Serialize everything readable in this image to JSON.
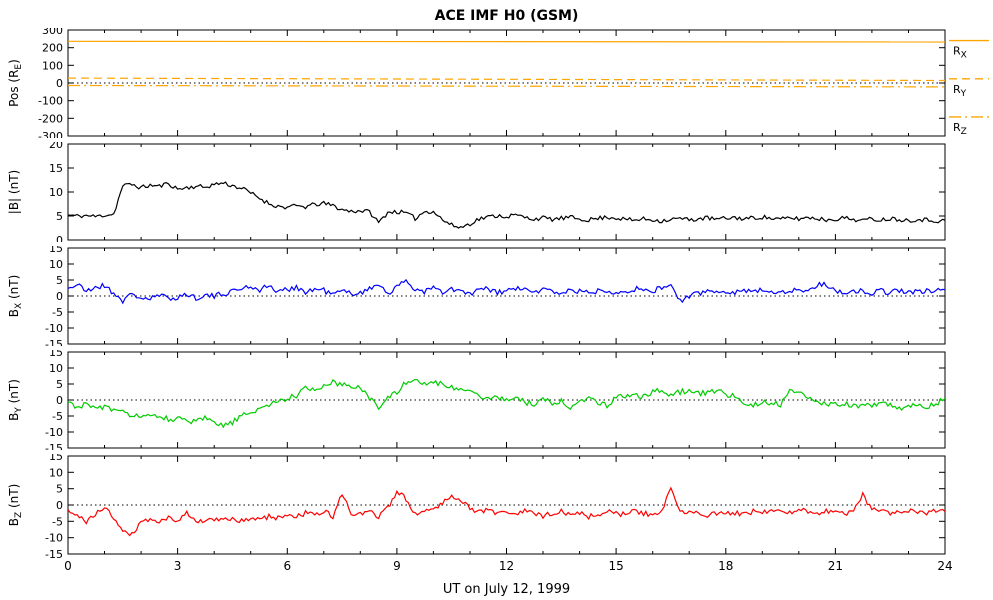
{
  "chart_data": {
    "type": "line",
    "title": "ACE IMF H0 (GSM)",
    "xlabel": "UT on July 12, 1999",
    "xlim": [
      0,
      24
    ],
    "xticks": [
      0,
      3,
      6,
      9,
      12,
      15,
      18,
      21,
      24
    ],
    "grid": false,
    "legend_position": "right-of-first-panel",
    "panels": [
      {
        "id": "pos",
        "ylabel": {
          "pre": "Pos (R",
          "sub": "E",
          "post": ")"
        },
        "ylim": [
          -300,
          300
        ],
        "yticks": [
          300,
          200,
          100,
          0,
          -100,
          -200,
          -300
        ],
        "zeroline": true,
        "xlabels": false,
        "series": [
          {
            "name": "R_X",
            "color": "#FFA500",
            "style": "solid",
            "x": [
              0,
              24
            ],
            "values": [
              236,
              232
            ],
            "noise": 0
          },
          {
            "name": "R_Y",
            "color": "#FFA500",
            "style": "dashed",
            "x": [
              0,
              24
            ],
            "values": [
              28,
              14
            ],
            "noise": 0
          },
          {
            "name": "R_Z",
            "color": "#FFA500",
            "style": "dashdot",
            "x": [
              0,
              24
            ],
            "values": [
              -14,
              -22
            ],
            "noise": 0
          }
        ],
        "legend": [
          {
            "pre": "R",
            "sub": "X",
            "style": "solid",
            "color": "#FFA500"
          },
          {
            "pre": "R",
            "sub": "Y",
            "style": "dashed",
            "color": "#FFA500"
          },
          {
            "pre": "R",
            "sub": "Z",
            "style": "dashdot",
            "color": "#FFA500"
          }
        ]
      },
      {
        "id": "bmag",
        "ylabel": {
          "pre": "|B| (nT)",
          "sub": "",
          "post": ""
        },
        "ylim": [
          0,
          20
        ],
        "yticks": [
          20,
          15,
          10,
          5,
          0
        ],
        "zeroline": false,
        "xlabels": false,
        "series": [
          {
            "name": "|B|",
            "color": "#000000",
            "style": "solid",
            "x0": 0,
            "dx": 0.25,
            "noise": 0.45,
            "values": [
              5.2,
              5.0,
              5.1,
              4.9,
              5.2,
              5.4,
              11.3,
              11.6,
              10.9,
              11.4,
              11.2,
              11.8,
              10.6,
              10.9,
              11.2,
              11.0,
              11.6,
              11.9,
              11.3,
              10.8,
              9.8,
              8.7,
              7.6,
              7.0,
              6.8,
              7.1,
              6.9,
              7.4,
              7.6,
              7.2,
              6.3,
              6.0,
              6.1,
              5.9,
              3.6,
              5.8,
              5.9,
              5.6,
              4.5,
              5.9,
              6.0,
              4.2,
              3.1,
              2.6,
              3.4,
              4.4,
              4.8,
              5.1,
              4.9,
              5.2,
              4.7,
              4.4,
              4.6,
              4.3,
              4.5,
              4.7,
              4.4,
              4.2,
              4.5,
              4.8,
              4.6,
              4.3,
              4.1,
              4.4,
              4.2,
              4.0,
              4.3,
              4.5,
              4.2,
              4.4,
              4.6,
              4.3,
              4.5,
              4.7,
              4.4,
              4.6,
              4.8,
              4.5,
              4.3,
              4.6,
              4.4,
              4.7,
              4.5,
              4.2,
              4.4,
              4.6,
              4.3,
              4.1,
              4.4,
              4.2,
              4.5,
              4.3,
              4.1,
              4.3,
              4.2,
              4.0,
              4.1
            ]
          }
        ]
      },
      {
        "id": "bx",
        "ylabel": {
          "pre": "B",
          "sub": "X",
          "post": " (nT)"
        },
        "ylim": [
          -15,
          15
        ],
        "yticks": [
          15,
          10,
          5,
          0,
          -5,
          -10,
          -15
        ],
        "zeroline": true,
        "xlabels": false,
        "series": [
          {
            "name": "B_X",
            "color": "#0000FF",
            "style": "solid",
            "x0": 0,
            "dx": 0.25,
            "noise": 0.9,
            "values": [
              2.5,
              3.5,
              1.5,
              2.8,
              3.2,
              1.0,
              -1.5,
              0.5,
              -0.5,
              -1.0,
              0.2,
              -0.8,
              -0.3,
              0.5,
              -0.5,
              0.3,
              -0.2,
              0.8,
              1.5,
              2.5,
              3.0,
              2.0,
              3.2,
              1.2,
              2.0,
              3.0,
              1.0,
              2.2,
              1.8,
              0.5,
              1.5,
              0.8,
              1.2,
              2.0,
              4.0,
              1.0,
              2.5,
              5.0,
              2.0,
              1.5,
              2.5,
              1.0,
              2.0,
              1.5,
              0.5,
              1.8,
              2.2,
              1.0,
              1.5,
              2.5,
              1.8,
              1.2,
              2.0,
              1.5,
              1.0,
              1.8,
              1.4,
              1.0,
              1.6,
              2.0,
              1.2,
              1.6,
              2.2,
              1.8,
              1.4,
              2.8,
              3.2,
              -1.5,
              -0.5,
              1.0,
              1.5,
              1.0,
              1.8,
              1.2,
              1.6,
              2.0,
              1.4,
              1.8,
              1.2,
              1.6,
              2.0,
              1.4,
              3.5,
              3.8,
              1.5,
              1.0,
              1.8,
              1.4,
              1.0,
              1.6,
              1.2,
              1.8,
              1.5,
              1.0,
              1.4,
              1.8,
              2.0
            ]
          }
        ]
      },
      {
        "id": "by",
        "ylabel": {
          "pre": "B",
          "sub": "Y",
          "post": " (nT)"
        },
        "ylim": [
          -15,
          15
        ],
        "yticks": [
          15,
          10,
          5,
          0,
          -5,
          -10,
          -15
        ],
        "zeroline": true,
        "xlabels": false,
        "series": [
          {
            "name": "B_Y",
            "color": "#00CC00",
            "style": "solid",
            "x0": 0,
            "dx": 0.25,
            "noise": 0.9,
            "values": [
              -1.0,
              -2.0,
              -1.5,
              -2.5,
              -2.0,
              -3.5,
              -4.0,
              -4.5,
              -5.0,
              -5.5,
              -5.0,
              -5.8,
              -6.0,
              -6.5,
              -7.0,
              -5.5,
              -7.5,
              -8.0,
              -7.0,
              -5.0,
              -4.0,
              -2.5,
              -1.5,
              -0.5,
              0.5,
              1.5,
              4.5,
              3.0,
              4.0,
              5.5,
              5.0,
              4.0,
              4.5,
              0.5,
              -2.0,
              1.0,
              2.0,
              5.5,
              6.0,
              5.5,
              5.0,
              5.5,
              4.0,
              3.0,
              3.5,
              1.5,
              0.5,
              1.0,
              0.0,
              1.0,
              -0.5,
              -1.5,
              0.5,
              -1.0,
              -0.5,
              -2.0,
              -1.0,
              0.5,
              -0.5,
              -1.5,
              0.5,
              1.5,
              2.0,
              1.0,
              2.5,
              3.0,
              1.5,
              2.5,
              3.0,
              2.0,
              2.5,
              3.0,
              2.0,
              1.0,
              -1.0,
              -1.5,
              -1.0,
              -0.5,
              -1.5,
              3.0,
              2.5,
              0.5,
              -0.5,
              -1.0,
              -1.5,
              -1.0,
              -2.0,
              -1.5,
              -2.0,
              -1.0,
              -1.5,
              -2.5,
              -2.0,
              -1.5,
              -2.0,
              -1.0,
              0.5
            ]
          }
        ]
      },
      {
        "id": "bz",
        "ylabel": {
          "pre": "B",
          "sub": "Z",
          "post": " (nT)"
        },
        "ylim": [
          -15,
          15
        ],
        "yticks": [
          15,
          10,
          5,
          0,
          -5,
          -10,
          -15
        ],
        "zeroline": true,
        "xlabels": true,
        "series": [
          {
            "name": "B_Z",
            "color": "#FF0000",
            "style": "solid",
            "x0": 0,
            "dx": 0.25,
            "noise": 0.8,
            "values": [
              -2.0,
              -3.5,
              -5.0,
              -3.0,
              -0.5,
              -4.0,
              -7.5,
              -9.0,
              -5.0,
              -4.5,
              -5.0,
              -4.0,
              -4.5,
              -2.0,
              -5.5,
              -4.5,
              -5.0,
              -4.0,
              -4.5,
              -5.0,
              -4.0,
              -4.5,
              -3.5,
              -4.0,
              -3.0,
              -3.5,
              -2.5,
              -3.0,
              -2.0,
              -3.5,
              3.5,
              -2.5,
              -3.0,
              -2.0,
              -3.5,
              -1.0,
              4.0,
              2.0,
              -2.5,
              -2.0,
              -1.5,
              1.0,
              3.0,
              1.5,
              -1.0,
              -2.0,
              -1.5,
              -2.5,
              -2.0,
              -3.0,
              -2.0,
              -2.5,
              -3.5,
              -2.5,
              -2.0,
              -3.0,
              -2.5,
              -3.5,
              -3.0,
              -2.0,
              -2.5,
              -3.0,
              -2.0,
              -2.5,
              -3.0,
              -2.0,
              5.0,
              -1.5,
              -2.5,
              -2.0,
              -3.0,
              -2.5,
              -2.0,
              -2.5,
              -3.0,
              -2.0,
              -2.5,
              -1.5,
              -2.0,
              -2.5,
              -1.5,
              -2.0,
              -2.5,
              -2.0,
              -1.5,
              -2.5,
              -2.0,
              3.0,
              -1.5,
              -2.0,
              -2.5,
              -2.0,
              -1.5,
              -2.0,
              -2.5,
              -2.0,
              -2.0
            ]
          }
        ]
      }
    ]
  }
}
